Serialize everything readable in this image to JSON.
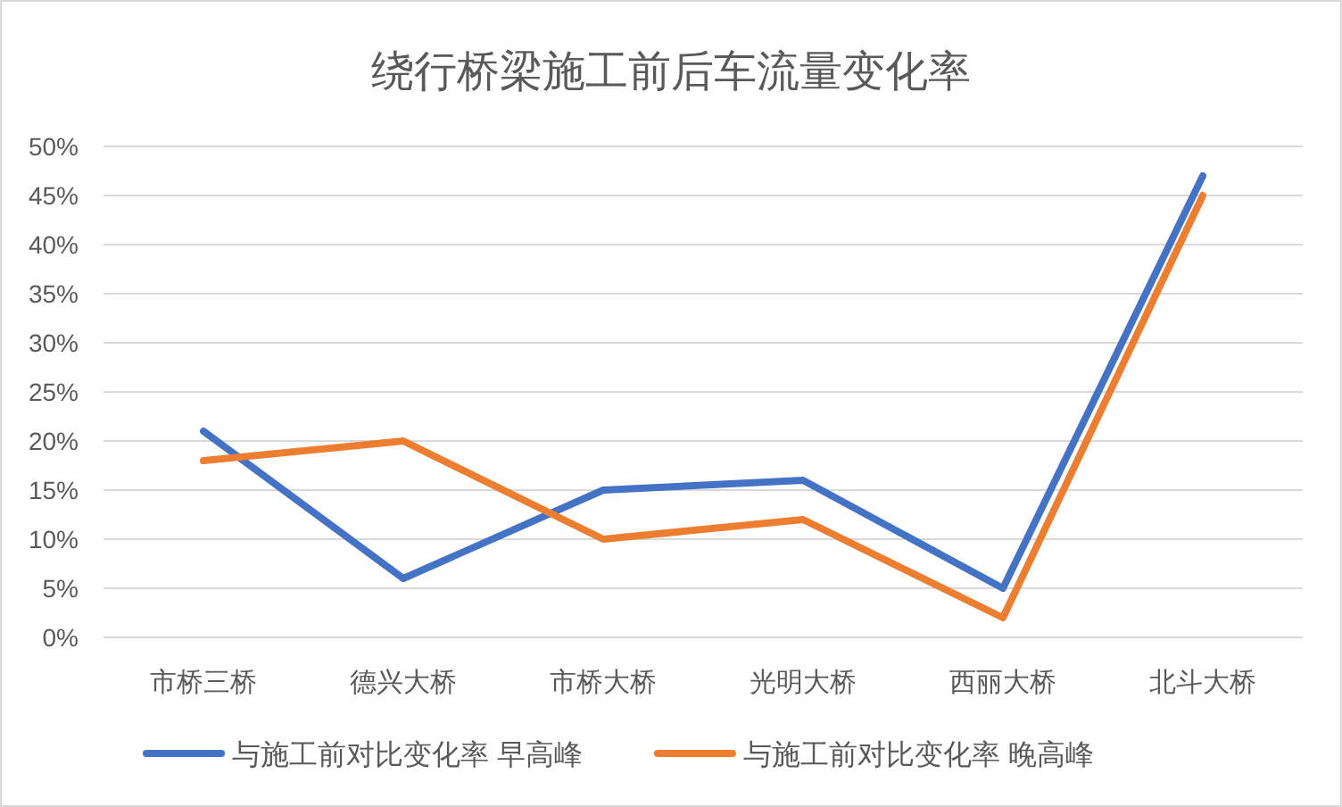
{
  "chart_data": {
    "type": "line",
    "title": "绕行桥梁施工前后车流量变化率",
    "categories": [
      "市桥三桥",
      "德兴大桥",
      "市桥大桥",
      "光明大桥",
      "西丽大桥",
      "北斗大桥"
    ],
    "series": [
      {
        "name": "与施工前对比变化率 早高峰",
        "color": "#4472c4",
        "values": [
          21,
          6,
          15,
          16,
          5,
          47
        ]
      },
      {
        "name": "与施工前对比变化率 晚高峰",
        "color": "#ed7d31",
        "values": [
          18,
          20,
          10,
          12,
          2,
          45
        ]
      }
    ],
    "ylim": [
      0,
      50
    ],
    "yticks": [
      {
        "value": 0,
        "label": "0%"
      },
      {
        "value": 5,
        "label": "5%"
      },
      {
        "value": 10,
        "label": "10%"
      },
      {
        "value": 15,
        "label": "15%"
      },
      {
        "value": 20,
        "label": "20%"
      },
      {
        "value": 25,
        "label": "25%"
      },
      {
        "value": 30,
        "label": "30%"
      },
      {
        "value": 35,
        "label": "35%"
      },
      {
        "value": 40,
        "label": "40%"
      },
      {
        "value": 45,
        "label": "45%"
      },
      {
        "value": 50,
        "label": "50%"
      }
    ],
    "grid": "y",
    "legend": "bottom",
    "marker": "none",
    "line_style": "solid"
  }
}
